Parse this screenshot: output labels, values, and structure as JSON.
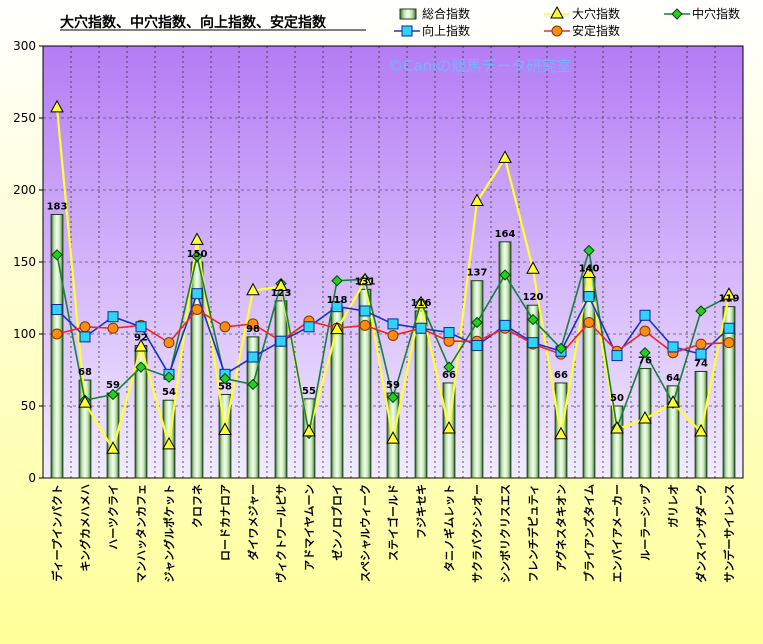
{
  "chart_data": {
    "type": "bar",
    "title": "大穴指数、中穴指数、向上指数、安定指数",
    "watermark": "©Caniの競馬データ研究室",
    "ylim": [
      0,
      300
    ],
    "yticks": [
      0,
      50,
      100,
      150,
      200,
      250,
      300
    ],
    "categories": [
      "ディープインパクト",
      "キングカメハメハ",
      "ハーツクライ",
      "マンハッタンカフェ",
      "ジャングルポケット",
      "クロフネ",
      "ロードカナロア",
      "ダイワメジャー",
      "ヴィクトワールピサ",
      "アドマイヤムーン",
      "ゼンノロブロイ",
      "スペシャルウィーク",
      "ステイゴールド",
      "フジキセキ",
      "タニノギムレット",
      "サクラバクシンオー",
      "シンボリクリスエス",
      "フレンチデピュティ",
      "アグネスタキオン",
      "ブライアンズタイム",
      "エンパイアメーカー",
      "ルーラーシップ",
      "ガリレオ",
      "ダンスインザダーク",
      "サンデーサイレンス"
    ],
    "series": [
      {
        "name": "総合指数",
        "kind": "bar",
        "color": "#2e7d32",
        "values": [
          183,
          68,
          59,
          92,
          54,
          150,
          58,
          98,
          123,
          55,
          118,
          131,
          59,
          116,
          66,
          137,
          164,
          120,
          66,
          140,
          50,
          76,
          64,
          74,
          119
        ]
      },
      {
        "name": "大穴指数",
        "kind": "line",
        "color": "#ffff33",
        "values": [
          257,
          52,
          20,
          91,
          23,
          165,
          33,
          130,
          133,
          32,
          103,
          137,
          27,
          121,
          34,
          192,
          222,
          145,
          30,
          142,
          34,
          41,
          52,
          32,
          127
        ]
      },
      {
        "name": "中穴指数",
        "kind": "line",
        "color": "#16803a",
        "values": [
          155,
          54,
          58,
          77,
          70,
          154,
          69,
          65,
          135,
          31,
          137,
          138,
          56,
          122,
          77,
          108,
          141,
          110,
          90,
          158,
          35,
          87,
          52,
          116,
          126
        ]
      },
      {
        "name": "向上指数",
        "kind": "line",
        "color": "#1a33c8",
        "values": [
          117,
          98,
          112,
          105,
          72,
          128,
          72,
          84,
          95,
          105,
          119,
          116,
          107,
          104,
          101,
          92,
          106,
          94,
          88,
          126,
          85,
          113,
          91,
          86,
          104
        ]
      },
      {
        "name": "安定指数",
        "kind": "line",
        "color": "#ff2020",
        "values": [
          100,
          105,
          104,
          106,
          94,
          117,
          105,
          107,
          95,
          109,
          104,
          106,
          99,
          104,
          95,
          95,
          104,
          93,
          86,
          108,
          88,
          102,
          87,
          93,
          94
        ]
      }
    ]
  }
}
